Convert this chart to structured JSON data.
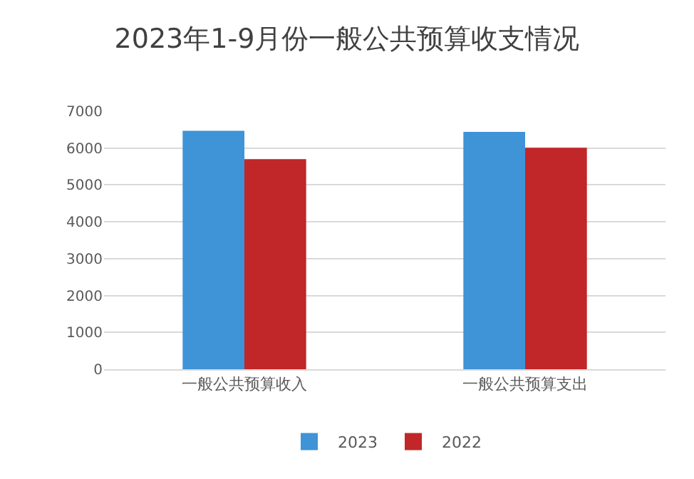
{
  "chart_data": {
    "type": "bar",
    "title": "2023年1-9月份一般公共预算收支情况",
    "categories": [
      "一般公共预算收入",
      "一般公共预算支出"
    ],
    "series": [
      {
        "name": "2023",
        "color": "#3f93d7",
        "values": [
          6470,
          6440
        ]
      },
      {
        "name": "2022",
        "color": "#c12628",
        "values": [
          5700,
          6010
        ]
      }
    ],
    "ylim": [
      0,
      7000
    ],
    "yticks": [
      0,
      1000,
      2000,
      3000,
      4000,
      5000,
      6000,
      7000
    ],
    "grid": "y",
    "legend": "bottom"
  }
}
